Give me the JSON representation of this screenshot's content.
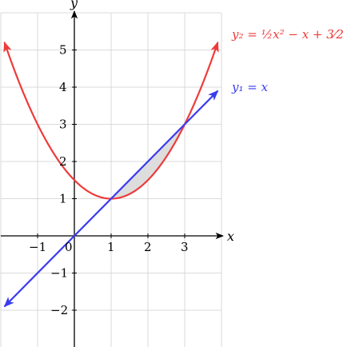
{
  "chart_data": {
    "type": "line",
    "xlabel": "x",
    "ylabel": "y",
    "xlim": [
      -2,
      4
    ],
    "ylim": [
      -3,
      6
    ],
    "x_ticks": [
      -1,
      0,
      1,
      2,
      3
    ],
    "x_tick_labels": [
      "−1",
      "0",
      "1",
      "2",
      "3"
    ],
    "y_ticks": [
      -2,
      -1,
      1,
      2,
      3,
      4,
      5
    ],
    "y_tick_labels": [
      "−2",
      "−1",
      "1",
      "2",
      "3",
      "4",
      "5"
    ],
    "grid": true,
    "series": [
      {
        "name": "y₂ = ½x² − x + 3⁄2",
        "color": "#ee3b3b",
        "x": [
          -1.9,
          -1.5,
          -1,
          -0.5,
          0,
          0.5,
          1,
          1.5,
          2,
          2.5,
          3,
          3.5,
          3.9
        ],
        "y": [
          5.205,
          4.125,
          3,
          2.125,
          1.5,
          1.125,
          1,
          1.125,
          1.5,
          2.125,
          3,
          4.125,
          5.205
        ]
      },
      {
        "name": "y₁ = x",
        "color": "#3b3bee",
        "x": [
          -1.9,
          3.9
        ],
        "y": [
          -1.9,
          3.9
        ]
      }
    ],
    "shaded_region": {
      "between": [
        "y₁ = x",
        "y₂ = ½x² − x + 3⁄2"
      ],
      "x_from": 1,
      "x_to": 3,
      "fill": "#dddddd"
    }
  }
}
